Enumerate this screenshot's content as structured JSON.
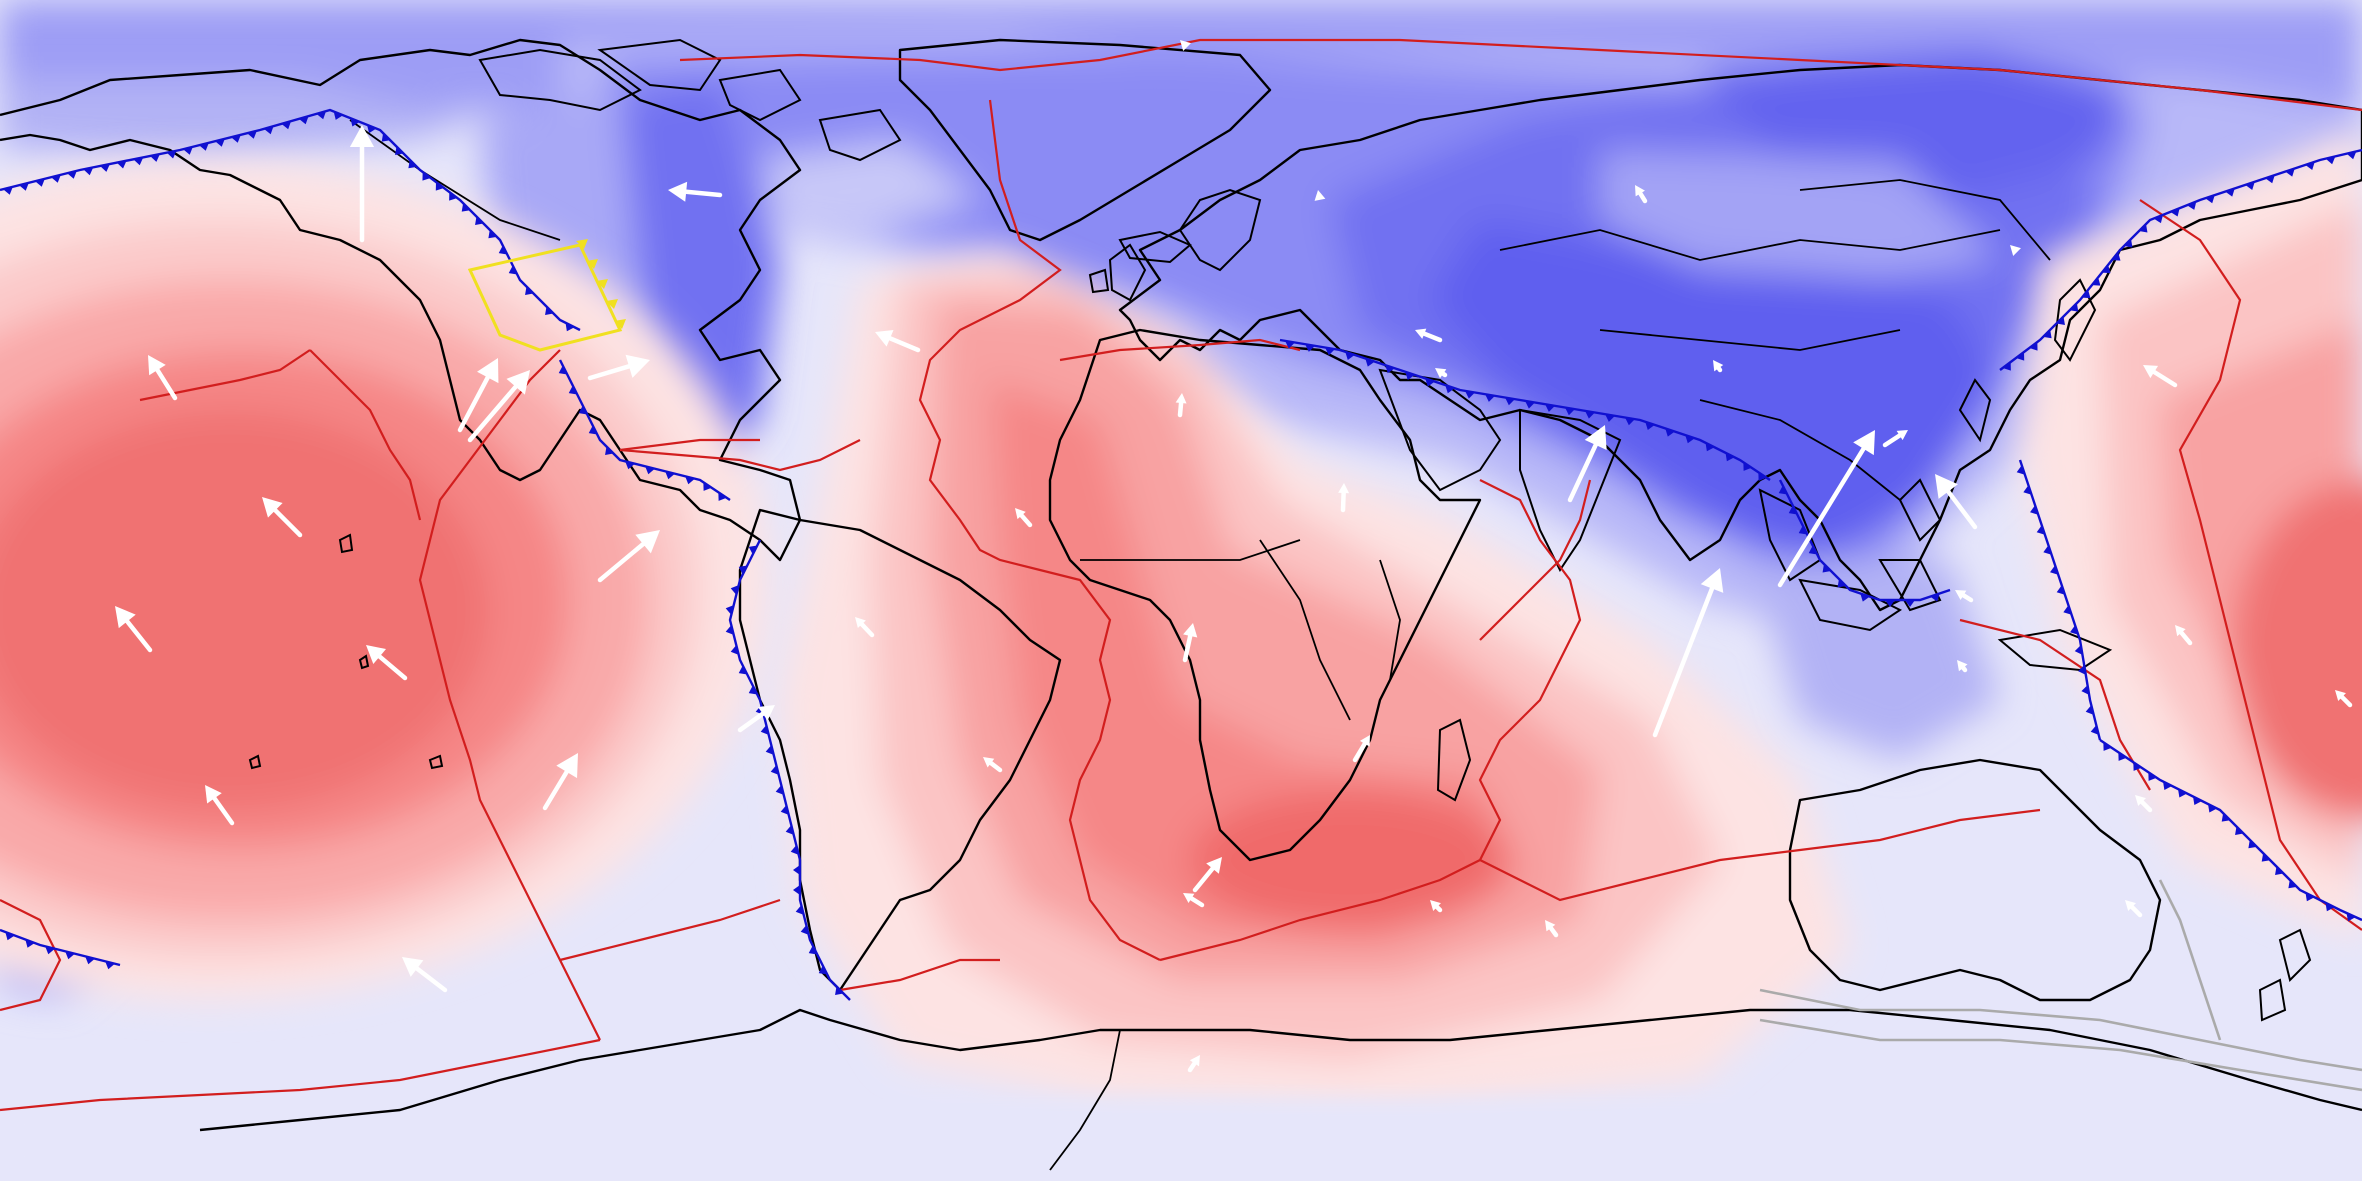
{
  "map": {
    "projection": "equirectangular",
    "field_colors": {
      "strong_negative": "#5a5af0",
      "negative": "#7b7bf3",
      "weak_negative": "#a6a6f7",
      "slight_negative": "#cbcbfa",
      "neutral": "#e6e6fa",
      "slight_positive": "#fde3e3",
      "weak_positive": "#fbbcbc",
      "positive": "#f79a9a",
      "strong_positive": "#f07272"
    },
    "layers": {
      "coastlines_color": "#000000",
      "plate_boundaries_color": "#d21e1e",
      "subduction_zones_color": "#1010d0",
      "velocity_arrows_color": "#ffffff",
      "highlight_block_color": "#f0e020"
    },
    "icons": [
      "velocity-arrow-icon",
      "subduction-tooth-icon"
    ]
  }
}
